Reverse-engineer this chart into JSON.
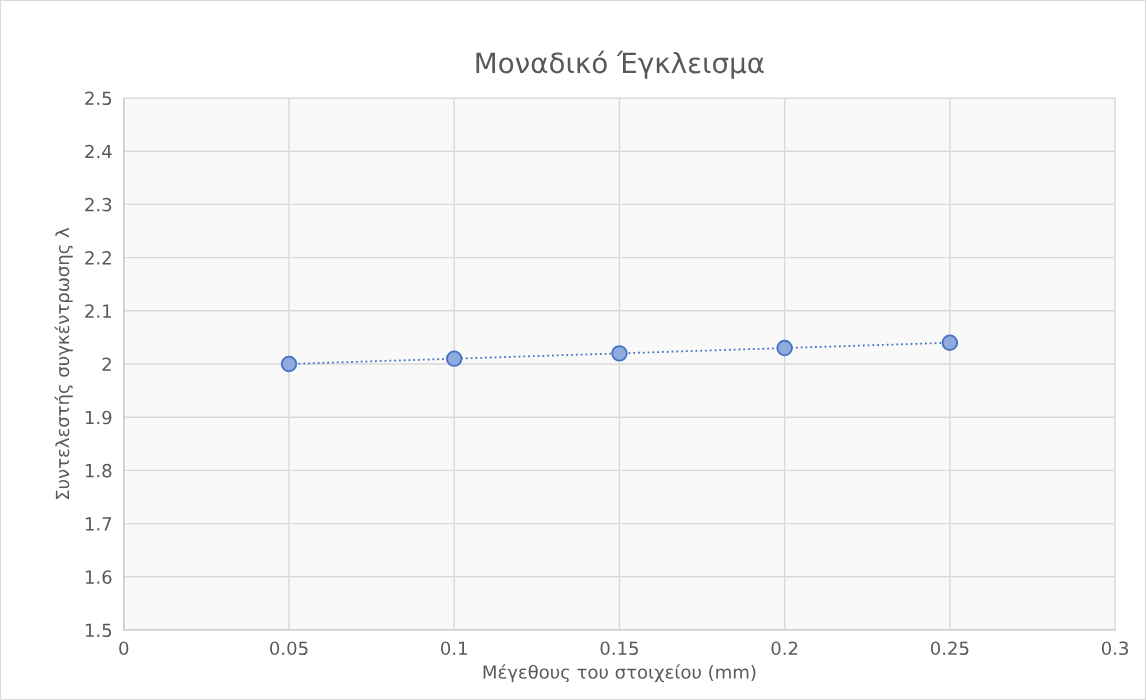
{
  "chart_data": {
    "type": "line",
    "title": "Μοναδικό Έγκλεισμα",
    "xlabel": "Μέγεθους του στοιχείου (mm)",
    "ylabel": "Συντελεστής συγκέντρωσης λ",
    "x": [
      0.05,
      0.1,
      0.15,
      0.2,
      0.25
    ],
    "series": [
      {
        "color": "#4472c4",
        "values": [
          2.0,
          2.01,
          2.02,
          2.03,
          2.04
        ]
      }
    ],
    "xlim": [
      0,
      0.3
    ],
    "xticks": [
      0,
      0.05,
      0.1,
      0.15,
      0.2,
      0.25,
      0.3
    ],
    "ylim": [
      1.5,
      2.5
    ],
    "yticks": [
      1.5,
      1.6,
      1.7,
      1.8,
      1.9,
      2,
      2.1,
      2.2,
      2.3,
      2.4,
      2.5
    ],
    "grid": true,
    "marker": "circle",
    "line_style": "dotted"
  }
}
